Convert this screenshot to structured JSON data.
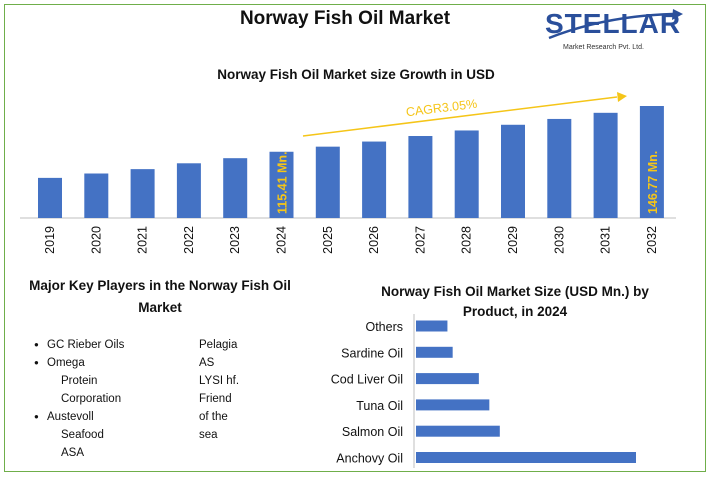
{
  "page": {
    "title": "Norway Fish Oil Market",
    "logo_text": "STELLAR",
    "logo_subtext": "Market Research Pvt. Ltd."
  },
  "key_players": {
    "title": "Major Key Players in the Norway Fish Oil Market",
    "column1": [
      {
        "text": "GC Rieber Oils",
        "bullet": true
      },
      {
        "text": "Omega",
        "bullet": true
      },
      {
        "text": "Protein",
        "bullet": false
      },
      {
        "text": "Corporation",
        "bullet": false
      },
      {
        "text": "Austevoll",
        "bullet": true
      },
      {
        "text": "Seafood",
        "bullet": false
      },
      {
        "text": "ASA",
        "bullet": false
      }
    ],
    "column2": [
      "Pelagia",
      "AS",
      "LYSI hf.",
      "Friend",
      "of the",
      "sea"
    ]
  },
  "colors": {
    "bar": "#4472c4",
    "accent": "#f5c518",
    "frame": "#6fae4a"
  },
  "chart_data": [
    {
      "type": "bar",
      "title": "Norway Fish Oil Market size Growth in USD",
      "categories": [
        "2019",
        "2020",
        "2021",
        "2022",
        "2023",
        "2024",
        "2025",
        "2026",
        "2027",
        "2028",
        "2029",
        "2030",
        "2031",
        "2032"
      ],
      "values": [
        null,
        null,
        null,
        null,
        null,
        115.41,
        null,
        null,
        null,
        null,
        null,
        null,
        null,
        146.77
      ],
      "estimated_values": [
        97.5,
        100.5,
        103.5,
        107.5,
        111,
        115.41,
        118.9,
        122.4,
        126.2,
        130,
        133.9,
        137.9,
        142.1,
        146.77
      ],
      "annotations": [
        {
          "category": "2024",
          "text": "115.41 Mn."
        },
        {
          "category": "2032",
          "text": "146.77 Mn."
        },
        {
          "text": "CAGR3.05%",
          "type": "trend-arrow"
        }
      ],
      "grid": false,
      "legend": false
    },
    {
      "type": "bar",
      "orientation": "horizontal",
      "title": "Norway Fish Oil Market Size (USD Mn.) by Product, in 2024",
      "categories": [
        "Others",
        "Sardine Oil",
        "Cod Liver Oil",
        "Tuna Oil",
        "Salmon Oil",
        "Anchovy Oil"
      ],
      "values": [
        6,
        7,
        12,
        14,
        16,
        42
      ],
      "grid": false,
      "legend": false
    }
  ]
}
